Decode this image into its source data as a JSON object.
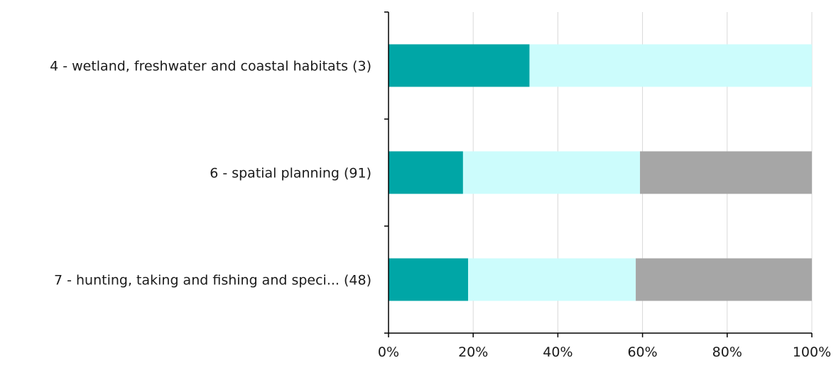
{
  "chart_data": {
    "type": "bar",
    "orientation": "horizontal",
    "stacked": "percent",
    "title": "",
    "xlabel": "",
    "ylabel": "",
    "categories": [
      "4 - wetland, freshwater and coastal habitats (3)",
      "6 - spatial planning (91)",
      "7 - hunting, taking and fishing and speci... (48)"
    ],
    "series": [
      {
        "color": "#00a6a6",
        "values": [
          33.3,
          17.6,
          18.8
        ]
      },
      {
        "color": "#ccfcfc",
        "values": [
          66.7,
          41.8,
          39.6
        ]
      },
      {
        "color": "#a6a6a6",
        "values": [
          0,
          40.6,
          41.6
        ]
      }
    ],
    "xlim": [
      0,
      100
    ],
    "x_ticks": [
      "0%",
      "20%",
      "40%",
      "60%",
      "80%",
      "100%"
    ],
    "grid": "vertical",
    "legend": "none"
  }
}
